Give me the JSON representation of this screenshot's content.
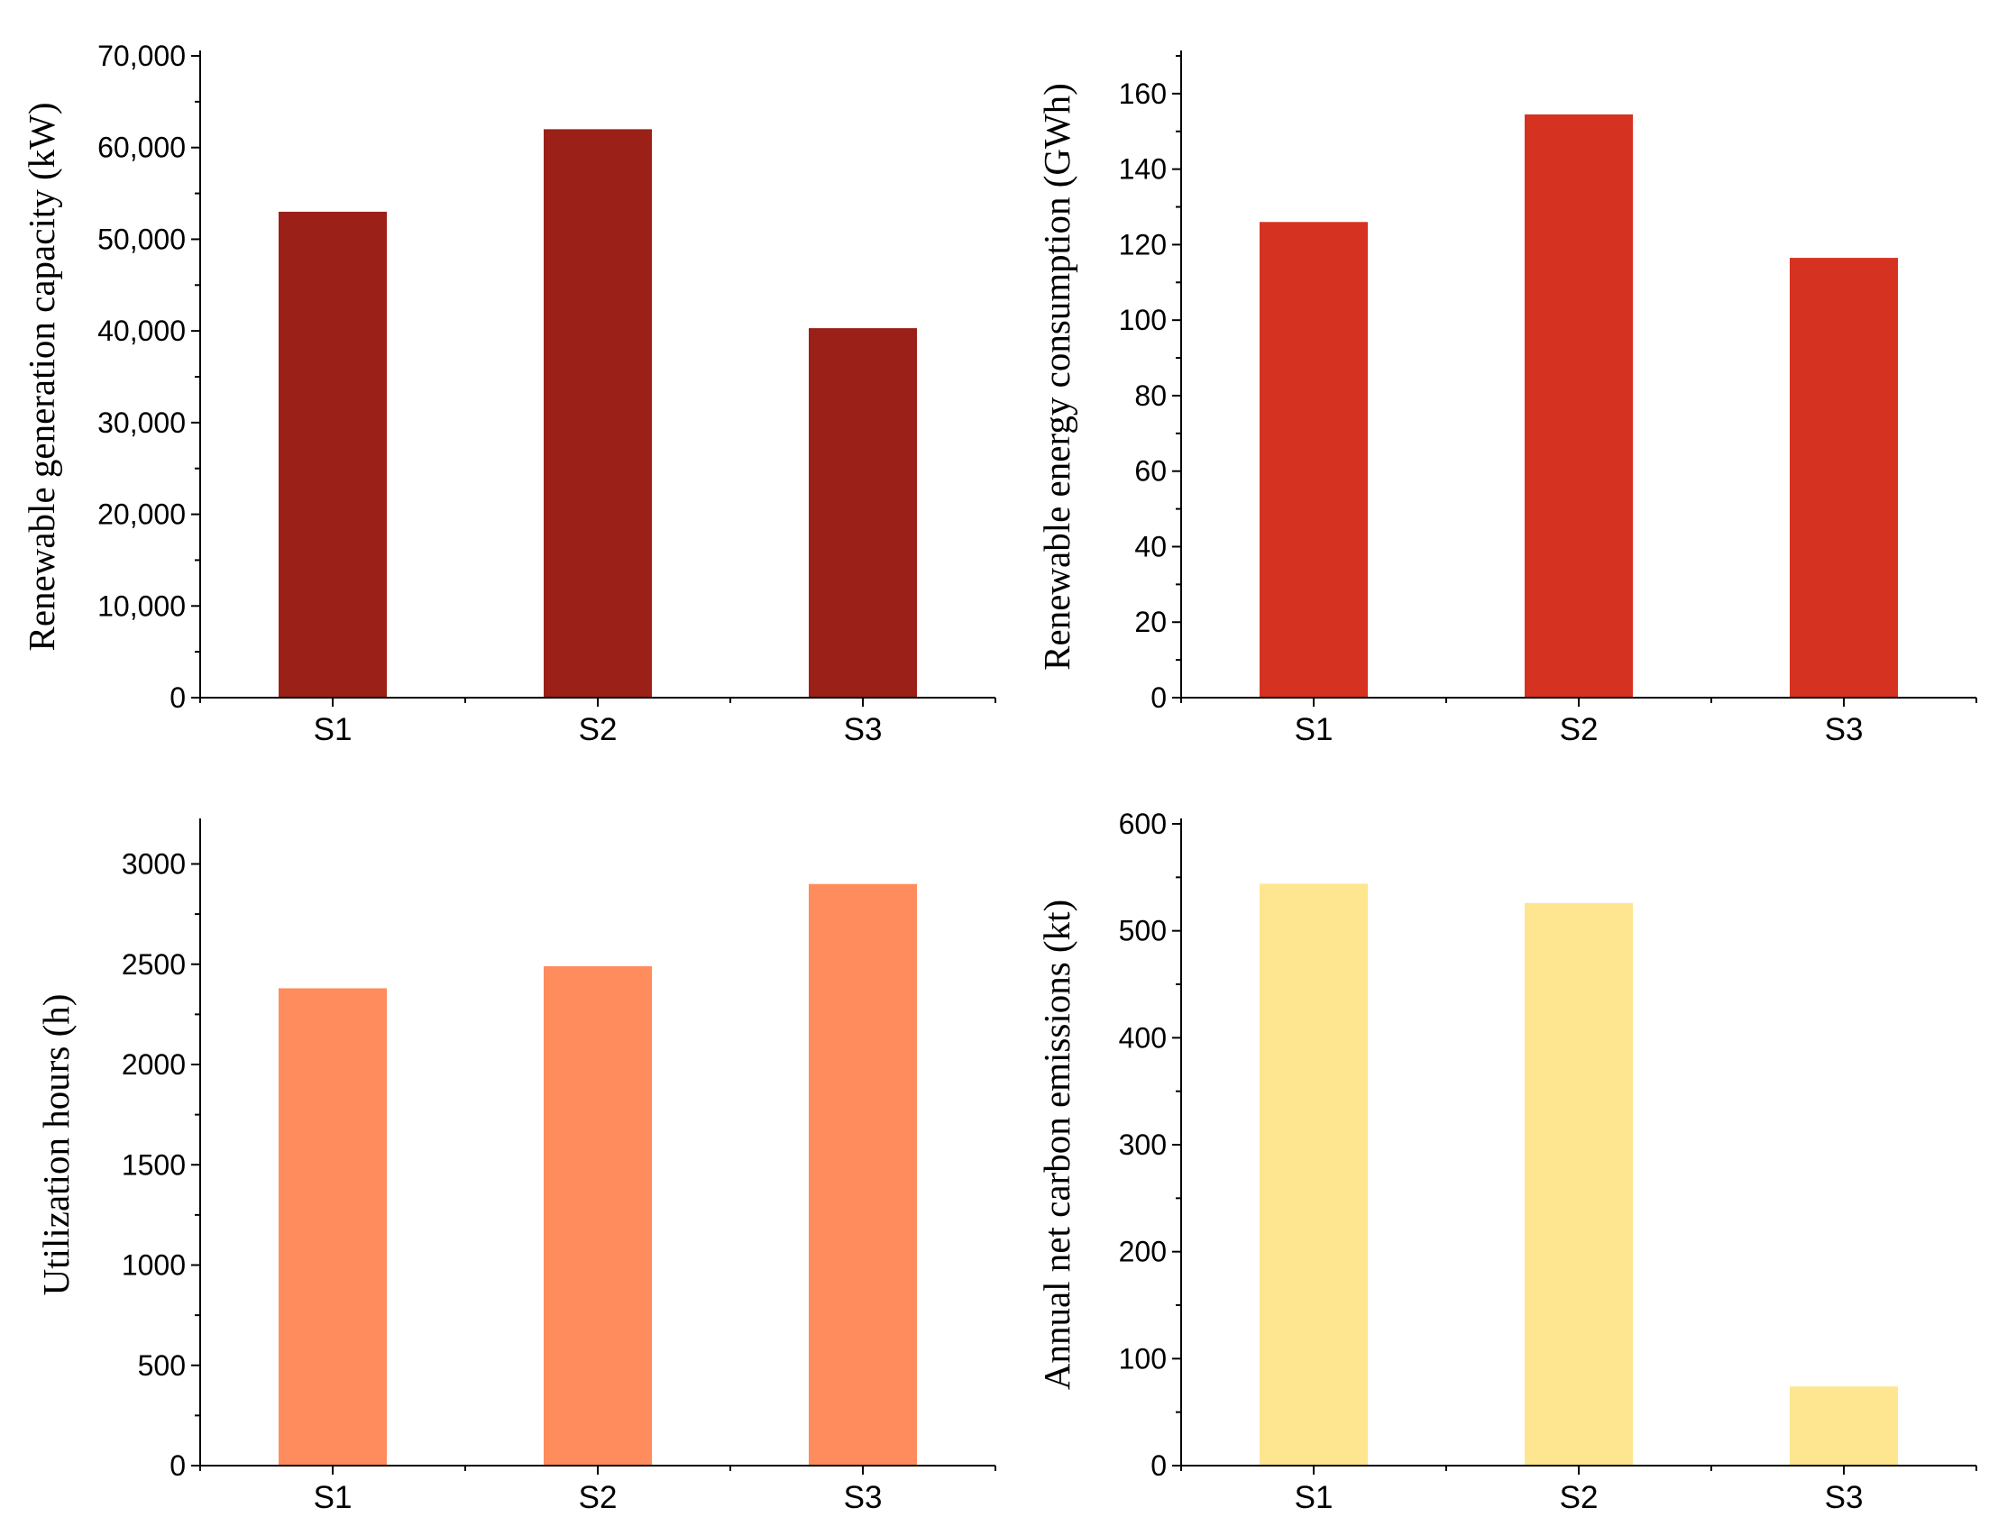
{
  "chart_data": [
    {
      "type": "bar",
      "categories": [
        "S1",
        "S2",
        "S3"
      ],
      "values": [
        53000,
        62000,
        40300
      ],
      "ylabel": "Renewable generation capacity (kW)",
      "xlabel": "",
      "ylim": [
        0,
        70000
      ],
      "yticks": [
        0,
        10000,
        20000,
        30000,
        40000,
        50000,
        60000,
        70000
      ],
      "yticklabels": [
        "0",
        "10,000",
        "20,000",
        "30,000",
        "40,000",
        "50,000",
        "60,000",
        "70,000"
      ],
      "color": "#9A2018"
    },
    {
      "type": "bar",
      "categories": [
        "S1",
        "S2",
        "S3"
      ],
      "values": [
        126,
        154.5,
        116.5
      ],
      "ylabel": "Renewable energy consumption (GWh)",
      "xlabel": "",
      "ylim": [
        0,
        170
      ],
      "yticks": [
        0,
        20,
        40,
        60,
        80,
        100,
        120,
        140,
        160
      ],
      "yticklabels": [
        "0",
        "20",
        "40",
        "60",
        "80",
        "100",
        "120",
        "140",
        "160"
      ],
      "color": "#D63222"
    },
    {
      "type": "bar",
      "categories": [
        "S1",
        "S2",
        "S3"
      ],
      "values": [
        2380,
        2490,
        2900
      ],
      "ylabel": "Utilization hours (h)",
      "xlabel": "",
      "ylim": [
        0,
        3200
      ],
      "yticks": [
        0,
        500,
        1000,
        1500,
        2000,
        2500,
        3000
      ],
      "yticklabels": [
        "0",
        "500",
        "1000",
        "1500",
        "2000",
        "2500",
        "3000"
      ],
      "color": "#FF8C5C"
    },
    {
      "type": "bar",
      "categories": [
        "S1",
        "S2",
        "S3"
      ],
      "values": [
        544,
        526,
        74
      ],
      "ylabel": "Annual net carbon emissions (kt)",
      "xlabel": "",
      "ylim": [
        0,
        600
      ],
      "yticks": [
        0,
        100,
        200,
        300,
        400,
        500,
        600
      ],
      "yticklabels": [
        "0",
        "100",
        "200",
        "300",
        "400",
        "500",
        "600"
      ],
      "color": "#FDE68F"
    }
  ]
}
